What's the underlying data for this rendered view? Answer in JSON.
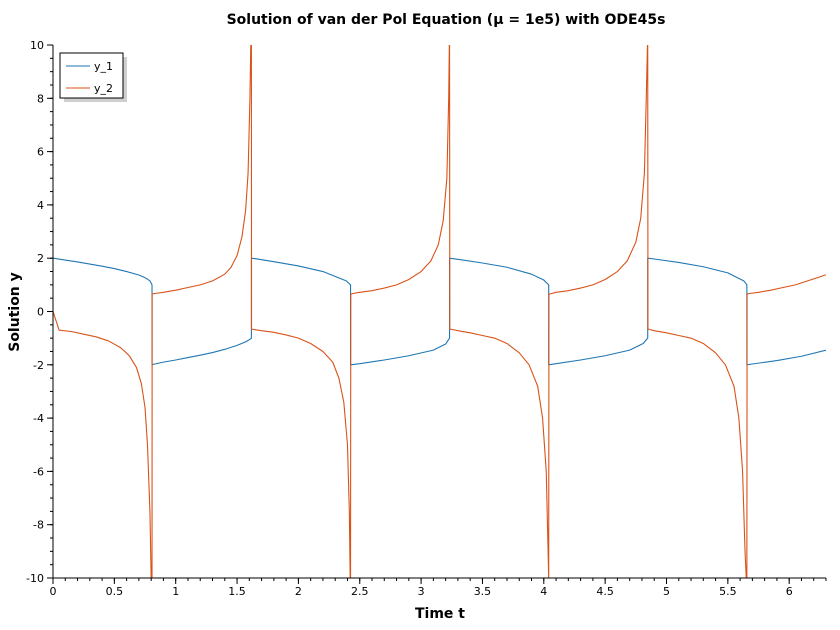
{
  "chart_data": {
    "type": "line",
    "title": "Solution of van der Pol Equation (μ = 1e5) with ODE45s",
    "xlabel": "Time t",
    "ylabel": "Solution y",
    "xlim": [
      0,
      6.3
    ],
    "ylim": [
      -10,
      10
    ],
    "xticks": [
      0,
      0.5,
      1,
      1.5,
      2,
      2.5,
      3,
      3.5,
      4,
      4.5,
      5,
      5.5,
      6
    ],
    "xtick_labels": [
      "0",
      "0.5",
      "1",
      "1.5",
      "2",
      "2.5",
      "3",
      "3.5",
      "4",
      "4.5",
      "5",
      "5.5",
      "6"
    ],
    "yticks": [
      -10,
      -8,
      -6,
      -4,
      -2,
      0,
      2,
      4,
      6,
      8,
      10
    ],
    "ytick_labels": [
      "-10",
      "-8",
      "-6",
      "-4",
      "-2",
      "0",
      "2",
      "4",
      "6",
      "8",
      "10"
    ],
    "grid": false,
    "legend": {
      "position": "top-left"
    },
    "series": [
      {
        "name": "y_1",
        "color": "#1f77b4",
        "x": [
          0,
          0.1,
          0.2,
          0.3,
          0.4,
          0.5,
          0.6,
          0.7,
          0.75,
          0.79,
          0.807,
          0.807,
          0.82,
          0.9,
          1.0,
          1.1,
          1.2,
          1.3,
          1.4,
          1.5,
          1.57,
          1.61,
          1.617,
          1.617,
          1.65,
          1.8,
          2.0,
          2.2,
          2.39,
          2.425,
          2.425,
          2.5,
          2.7,
          2.9,
          3.1,
          3.2,
          3.232,
          3.232,
          3.3,
          3.5,
          3.7,
          3.9,
          4.0,
          4.04,
          4.04,
          4.1,
          4.3,
          4.5,
          4.7,
          4.81,
          4.847,
          4.847,
          4.9,
          5.1,
          5.3,
          5.5,
          5.63,
          5.655,
          5.655,
          5.7,
          5.9,
          6.1,
          6.3
        ],
        "y": [
          2.0,
          1.93,
          1.86,
          1.78,
          1.7,
          1.61,
          1.5,
          1.37,
          1.27,
          1.15,
          1.0,
          -2.0,
          -1.98,
          -1.9,
          -1.82,
          -1.73,
          -1.64,
          -1.54,
          -1.42,
          -1.27,
          -1.14,
          -1.03,
          -1.0,
          2.0,
          1.98,
          1.87,
          1.71,
          1.5,
          1.15,
          1.0,
          -2.0,
          -1.96,
          -1.82,
          -1.66,
          -1.45,
          -1.22,
          -1.0,
          2.0,
          1.96,
          1.82,
          1.66,
          1.4,
          1.18,
          1.0,
          -2.0,
          -1.96,
          -1.82,
          -1.66,
          -1.45,
          -1.2,
          -1.0,
          2.0,
          1.97,
          1.84,
          1.68,
          1.45,
          1.15,
          1.0,
          -2.0,
          -1.97,
          -1.84,
          -1.68,
          -1.45
        ]
      },
      {
        "name": "y_2",
        "color": "#d95319",
        "x": [
          0,
          0.05,
          0.15,
          0.25,
          0.35,
          0.45,
          0.55,
          0.62,
          0.68,
          0.72,
          0.75,
          0.77,
          0.79,
          0.8,
          0.805,
          0.807,
          0.808,
          0.812,
          0.82,
          0.9,
          1.0,
          1.1,
          1.2,
          1.3,
          1.4,
          1.45,
          1.5,
          1.54,
          1.57,
          1.59,
          1.605,
          1.612,
          1.615,
          1.617,
          1.618,
          1.63,
          1.7,
          1.8,
          1.9,
          2.0,
          2.1,
          2.2,
          2.28,
          2.33,
          2.37,
          2.4,
          2.415,
          2.422,
          2.425,
          2.427,
          2.44,
          2.5,
          2.6,
          2.7,
          2.8,
          2.9,
          3.0,
          3.08,
          3.14,
          3.18,
          3.21,
          3.225,
          3.23,
          3.232,
          3.234,
          3.25,
          3.3,
          3.4,
          3.5,
          3.6,
          3.7,
          3.8,
          3.88,
          3.95,
          3.99,
          4.02,
          4.035,
          4.04,
          4.042,
          4.06,
          4.1,
          4.2,
          4.3,
          4.4,
          4.5,
          4.6,
          4.68,
          4.75,
          4.79,
          4.82,
          4.835,
          4.845,
          4.847,
          4.849,
          4.86,
          4.9,
          5.0,
          5.1,
          5.2,
          5.3,
          5.4,
          5.48,
          5.55,
          5.59,
          5.62,
          5.64,
          5.65,
          5.655,
          5.657,
          5.67,
          5.75,
          5.85,
          5.95,
          6.05,
          6.15,
          6.25,
          6.3
        ],
        "y": [
          0.0,
          -0.7,
          -0.75,
          -0.85,
          -0.95,
          -1.1,
          -1.35,
          -1.65,
          -2.1,
          -2.7,
          -3.6,
          -5.0,
          -7.5,
          -10.0,
          -10.0,
          -10.0,
          0.65,
          0.66,
          0.67,
          0.72,
          0.8,
          0.9,
          1.0,
          1.15,
          1.4,
          1.65,
          2.1,
          2.8,
          3.8,
          5.2,
          8.0,
          10.0,
          10.0,
          10.0,
          -0.66,
          -0.67,
          -0.72,
          -0.78,
          -0.88,
          -1.0,
          -1.2,
          -1.5,
          -1.9,
          -2.5,
          -3.4,
          -5.0,
          -7.5,
          -10.0,
          -10.0,
          0.65,
          0.67,
          0.72,
          0.78,
          0.88,
          1.0,
          1.2,
          1.5,
          1.9,
          2.5,
          3.4,
          5.0,
          8.0,
          10.0,
          10.0,
          -0.66,
          -0.67,
          -0.72,
          -0.8,
          -0.9,
          -1.0,
          -1.2,
          -1.55,
          -2.0,
          -2.8,
          -4.0,
          -6.0,
          -9.0,
          -10.0,
          0.65,
          0.67,
          0.72,
          0.78,
          0.88,
          1.0,
          1.2,
          1.5,
          1.9,
          2.6,
          3.5,
          5.2,
          8.0,
          10.0,
          10.0,
          -0.66,
          -0.67,
          -0.72,
          -0.8,
          -0.9,
          -1.0,
          -1.2,
          -1.55,
          -2.0,
          -2.8,
          -4.0,
          -6.0,
          -9.0,
          -10.0,
          -10.0,
          0.65,
          0.67,
          0.72,
          0.8,
          0.9,
          1.0,
          1.15,
          1.3,
          1.38
        ]
      }
    ]
  }
}
